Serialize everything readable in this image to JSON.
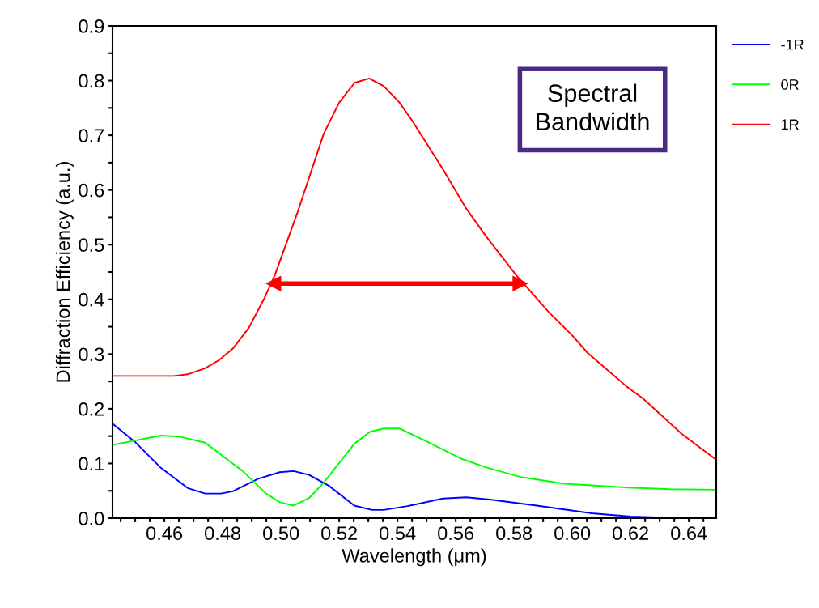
{
  "chart_data": {
    "type": "line",
    "xlabel": "Wavelength (μm)",
    "ylabel": "Diffraction Efficiency (a.u.)",
    "xlim": [
      0.4422,
      0.6494
    ],
    "ylim": [
      0,
      0.9
    ],
    "xticks": [
      {
        "value": 0.445,
        "label": null
      },
      {
        "value": 0.45,
        "label": null
      },
      {
        "value": 0.455,
        "label": null
      },
      {
        "value": 0.46,
        "label": "0.46"
      },
      {
        "value": 0.465,
        "label": null
      },
      {
        "value": 0.47,
        "label": null
      },
      {
        "value": 0.475,
        "label": null
      },
      {
        "value": 0.48,
        "label": "0.48"
      },
      {
        "value": 0.485,
        "label": null
      },
      {
        "value": 0.49,
        "label": null
      },
      {
        "value": 0.495,
        "label": null
      },
      {
        "value": 0.5,
        "label": "0.50"
      },
      {
        "value": 0.505,
        "label": null
      },
      {
        "value": 0.51,
        "label": null
      },
      {
        "value": 0.515,
        "label": null
      },
      {
        "value": 0.52,
        "label": "0.52"
      },
      {
        "value": 0.525,
        "label": null
      },
      {
        "value": 0.53,
        "label": null
      },
      {
        "value": 0.535,
        "label": null
      },
      {
        "value": 0.54,
        "label": "0.54"
      },
      {
        "value": 0.545,
        "label": null
      },
      {
        "value": 0.55,
        "label": null
      },
      {
        "value": 0.555,
        "label": null
      },
      {
        "value": 0.56,
        "label": "0.56"
      },
      {
        "value": 0.565,
        "label": null
      },
      {
        "value": 0.57,
        "label": null
      },
      {
        "value": 0.575,
        "label": null
      },
      {
        "value": 0.58,
        "label": "0.58"
      },
      {
        "value": 0.585,
        "label": null
      },
      {
        "value": 0.59,
        "label": null
      },
      {
        "value": 0.595,
        "label": null
      },
      {
        "value": 0.6,
        "label": "0.60"
      },
      {
        "value": 0.605,
        "label": null
      },
      {
        "value": 0.61,
        "label": null
      },
      {
        "value": 0.615,
        "label": null
      },
      {
        "value": 0.62,
        "label": "0.62"
      },
      {
        "value": 0.625,
        "label": null
      },
      {
        "value": 0.63,
        "label": null
      },
      {
        "value": 0.635,
        "label": null
      },
      {
        "value": 0.64,
        "label": "0.64"
      },
      {
        "value": 0.645,
        "label": null
      }
    ],
    "yticks": [
      {
        "value": 0,
        "label": "0.0"
      },
      {
        "value": 0.05,
        "label": null
      },
      {
        "value": 0.1,
        "label": "0.1"
      },
      {
        "value": 0.15,
        "label": null
      },
      {
        "value": 0.2,
        "label": "0.2"
      },
      {
        "value": 0.25,
        "label": null
      },
      {
        "value": 0.3,
        "label": "0.3"
      },
      {
        "value": 0.35,
        "label": null
      },
      {
        "value": 0.4,
        "label": "0.4"
      },
      {
        "value": 0.45,
        "label": null
      },
      {
        "value": 0.5,
        "label": "0.5"
      },
      {
        "value": 0.55,
        "label": null
      },
      {
        "value": 0.6,
        "label": "0.6"
      },
      {
        "value": 0.65,
        "label": null
      },
      {
        "value": 0.7,
        "label": "0.7"
      },
      {
        "value": 0.75,
        "label": null
      },
      {
        "value": 0.8,
        "label": "0.8"
      },
      {
        "value": 0.85,
        "label": null
      },
      {
        "value": 0.9,
        "label": "0.9"
      }
    ],
    "grid": false,
    "legend": "top right",
    "marker": "none",
    "line_style": "solid",
    "series": [
      {
        "name": "-1R",
        "color": "#0000ff",
        "x": [
          0.4424,
          0.4498,
          0.4586,
          0.468,
          0.474,
          0.4794,
          0.4835,
          0.4922,
          0.4996,
          0.5044,
          0.5097,
          0.5165,
          0.5252,
          0.5313,
          0.5353,
          0.5434,
          0.5556,
          0.5636,
          0.5717,
          0.5878,
          0.6067,
          0.6201,
          0.6376,
          0.6491
        ],
        "values": [
          0.172,
          0.14,
          0.093,
          0.055,
          0.045,
          0.045,
          0.049,
          0.072,
          0.084,
          0.086,
          0.079,
          0.059,
          0.023,
          0.015,
          0.015,
          0.022,
          0.036,
          0.038,
          0.034,
          0.023,
          0.009,
          0.003,
          0.0,
          0.0
        ]
      },
      {
        "name": "0R",
        "color": "#00ff00",
        "x": [
          0.4424,
          0.4586,
          0.4653,
          0.474,
          0.4829,
          0.4869,
          0.4949,
          0.4996,
          0.5044,
          0.5097,
          0.5144,
          0.5252,
          0.5306,
          0.5353,
          0.5407,
          0.5501,
          0.5622,
          0.5703,
          0.5824,
          0.5972,
          0.6188,
          0.6336,
          0.6491
        ],
        "values": [
          0.134,
          0.151,
          0.149,
          0.138,
          0.102,
          0.086,
          0.045,
          0.029,
          0.023,
          0.037,
          0.063,
          0.136,
          0.158,
          0.164,
          0.164,
          0.14,
          0.108,
          0.093,
          0.075,
          0.063,
          0.056,
          0.053,
          0.052
        ]
      },
      {
        "name": "1R",
        "color": "#ff0000",
        "x": [
          0.4424,
          0.4633,
          0.468,
          0.474,
          0.4788,
          0.4835,
          0.489,
          0.4943,
          0.4979,
          0.5057,
          0.5147,
          0.52,
          0.5253,
          0.5303,
          0.5353,
          0.5407,
          0.5454,
          0.5556,
          0.5636,
          0.5703,
          0.5808,
          0.5919,
          0.6,
          0.6053,
          0.6188,
          0.6242,
          0.6376,
          0.6491
        ],
        "values": [
          0.26,
          0.26,
          0.263,
          0.274,
          0.289,
          0.31,
          0.348,
          0.402,
          0.444,
          0.559,
          0.703,
          0.76,
          0.796,
          0.804,
          0.79,
          0.76,
          0.724,
          0.638,
          0.566,
          0.516,
          0.444,
          0.377,
          0.334,
          0.302,
          0.24,
          0.219,
          0.154,
          0.108
        ]
      },
      {
        "type": "line",
        "color": "#ff0000",
        "marker": "triangle",
        "x": [
          0.4974,
          0.5822
        ],
        "values": [
          0.429,
          0.429
        ]
      }
    ],
    "annotations": [
      "Spectral\nBandwidth"
    ]
  }
}
